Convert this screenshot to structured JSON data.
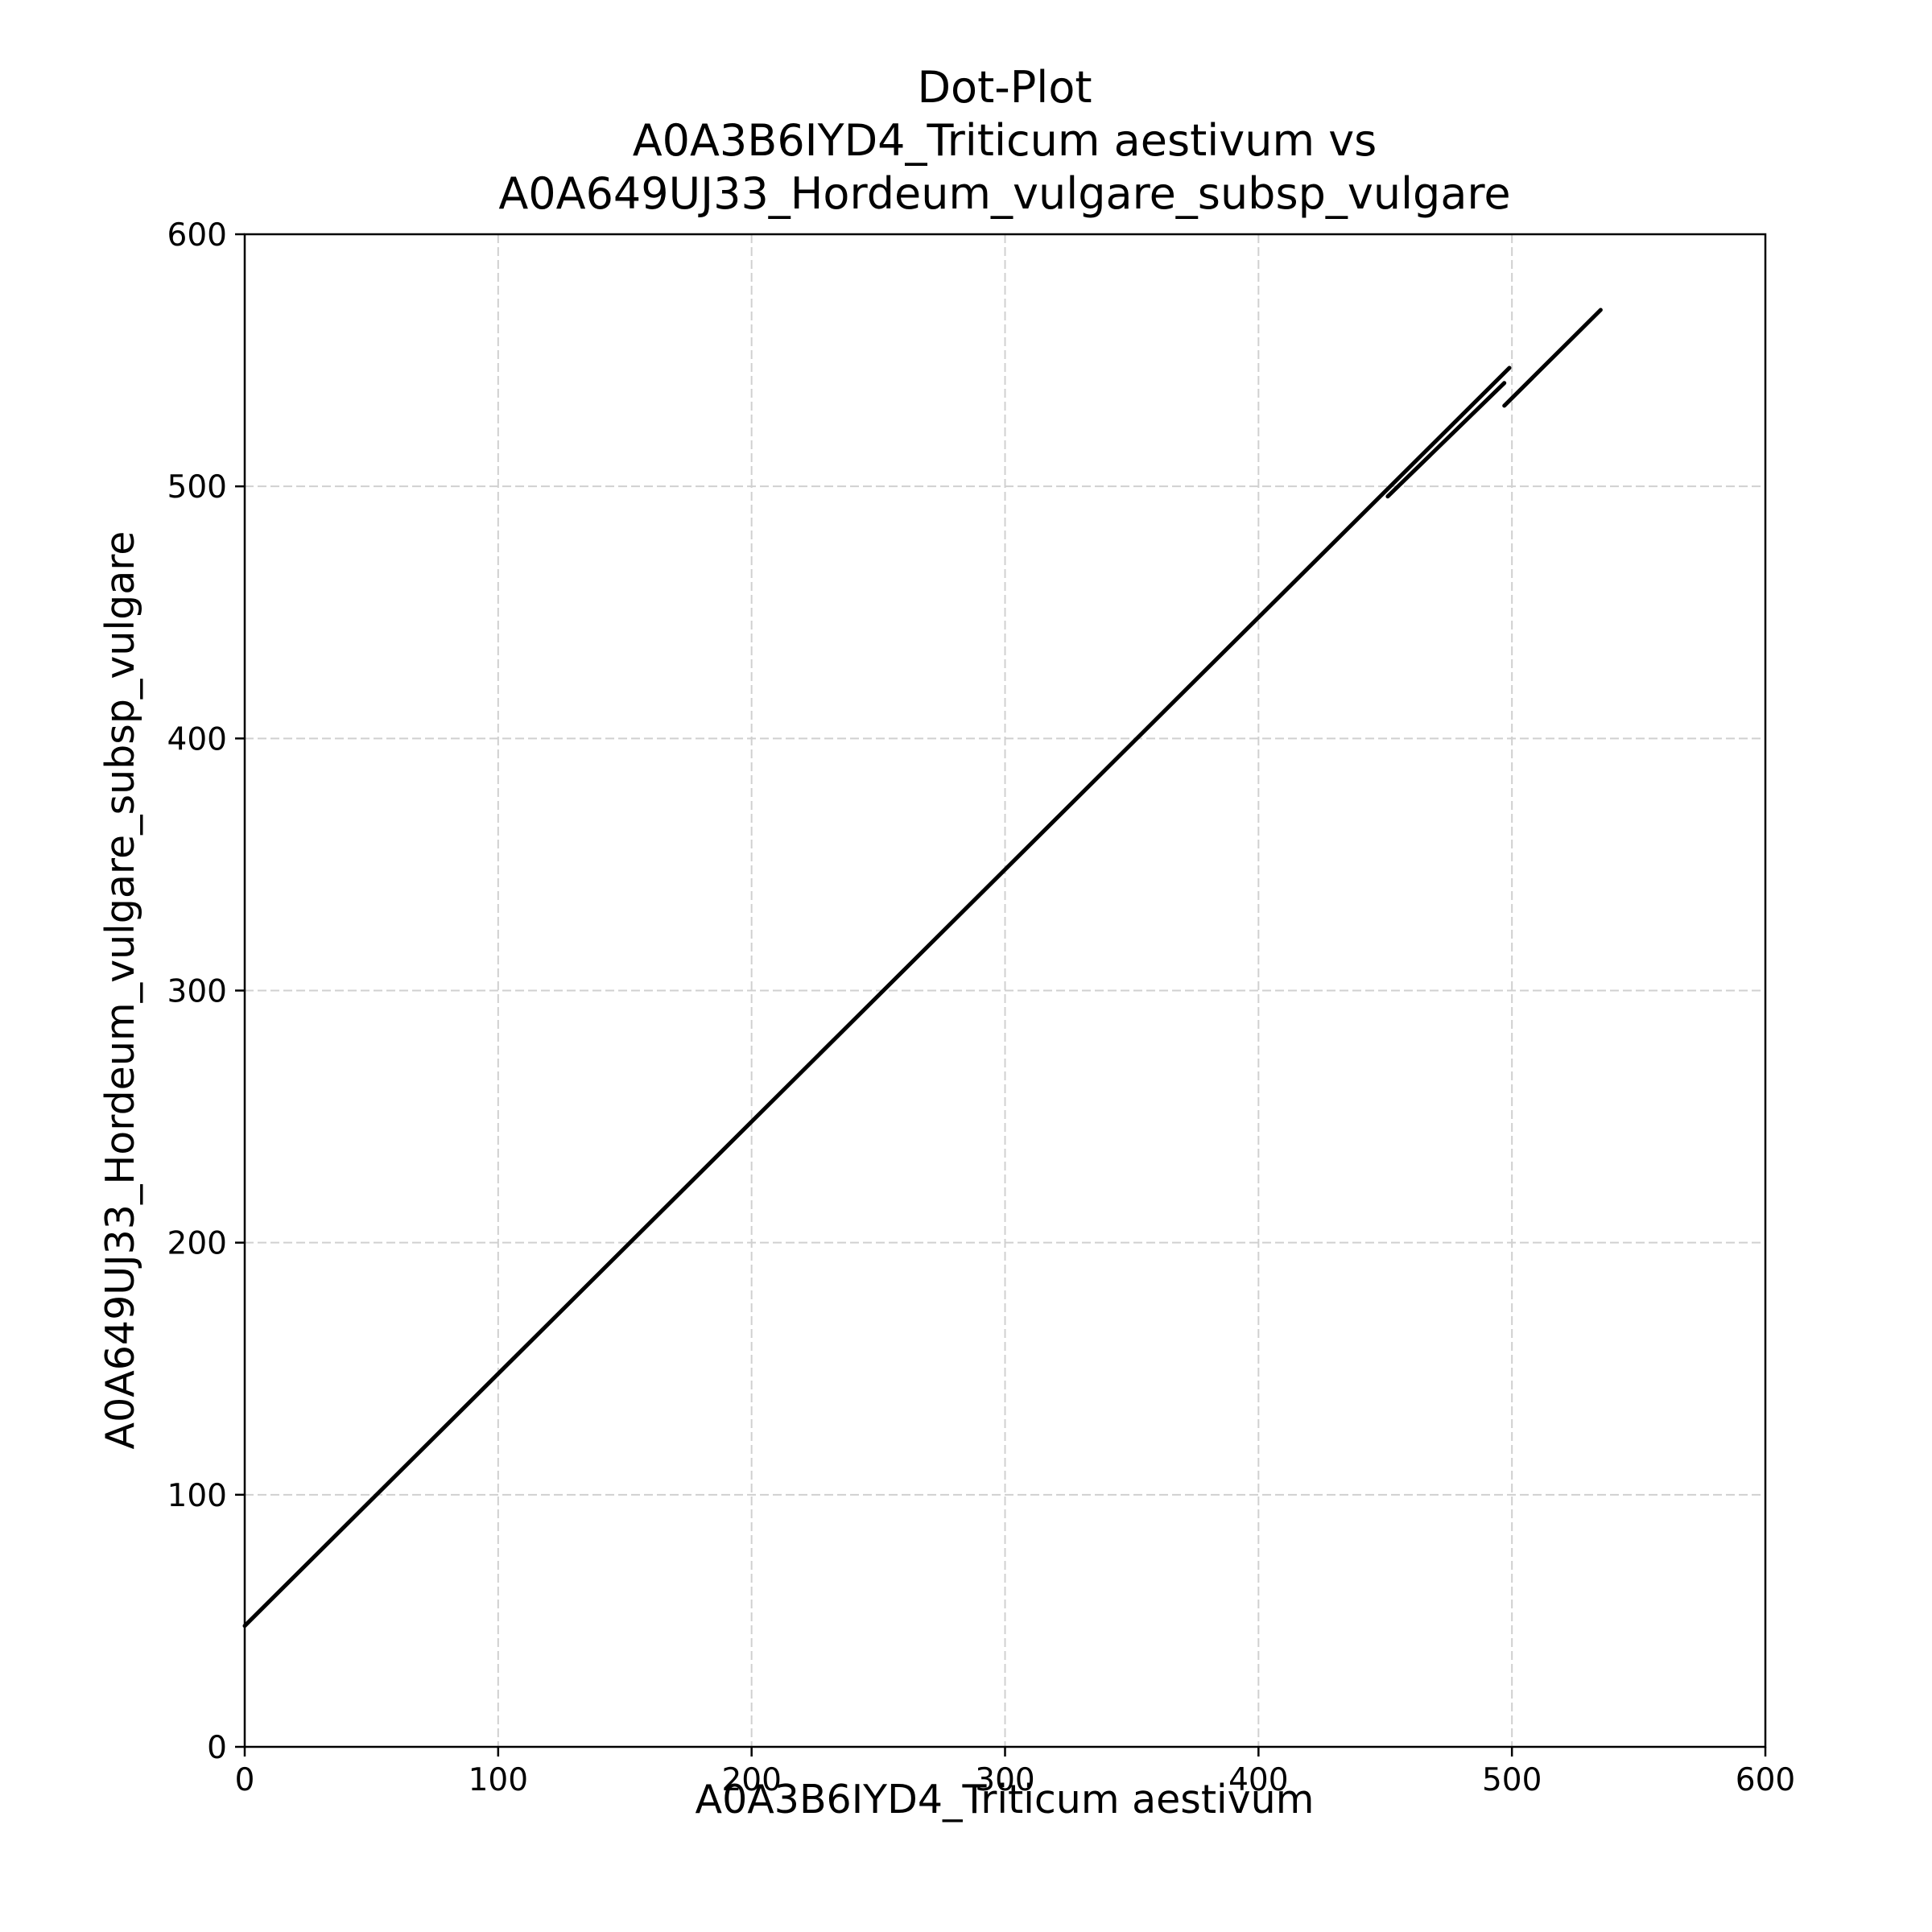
{
  "chart_data": {
    "type": "line",
    "title_lines": [
      "Dot-Plot",
      "A0A3B6IYD4_Triticum aestivum vs",
      "A0A649UJ33_Hordeum_vulgare_subsp_vulgare"
    ],
    "xlabel": "A0A3B6IYD4_Triticum aestivum",
    "ylabel": "A0A649UJ33_Hordeum_vulgare_subsp_vulgare",
    "xlim": [
      0,
      600
    ],
    "ylim": [
      0,
      600
    ],
    "xticks": [
      0,
      100,
      200,
      300,
      400,
      500,
      600
    ],
    "yticks": [
      0,
      100,
      200,
      300,
      400,
      500,
      600
    ],
    "grid": true,
    "line_color": "#000000",
    "segments": [
      {
        "x": [
          0,
          499
        ],
        "y": [
          48,
          547
        ]
      },
      {
        "x": [
          451,
          497
        ],
        "y": [
          496,
          541
        ]
      },
      {
        "x": [
          497,
          535
        ],
        "y": [
          532,
          570
        ]
      }
    ]
  }
}
